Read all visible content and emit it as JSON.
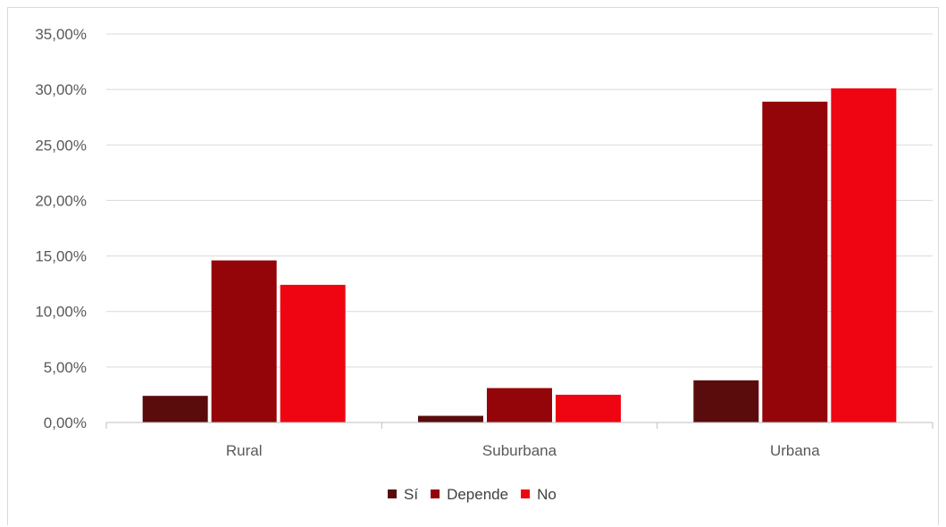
{
  "chart_data": {
    "type": "bar",
    "categories": [
      "Rural",
      "Suburbana",
      "Urbana"
    ],
    "series": [
      {
        "name": "Sí",
        "color": "#5a0c0c",
        "values": [
          2.4,
          0.6,
          3.8
        ]
      },
      {
        "name": "Depende",
        "color": "#930508",
        "values": [
          14.6,
          3.1,
          28.9
        ]
      },
      {
        "name": "No",
        "color": "#ee0511",
        "values": [
          12.4,
          2.5,
          30.1
        ]
      }
    ],
    "y_ticks": [
      "0,00%",
      "5,00%",
      "10,00%",
      "15,00%",
      "20,00%",
      "25,00%",
      "30,00%",
      "35,00%"
    ],
    "ylim": [
      0,
      35
    ],
    "y_unit": "%",
    "grid": true,
    "legend_position": "bottom",
    "gridline_color": "#d9d9d9",
    "axis_color": "#bfbfbf"
  }
}
